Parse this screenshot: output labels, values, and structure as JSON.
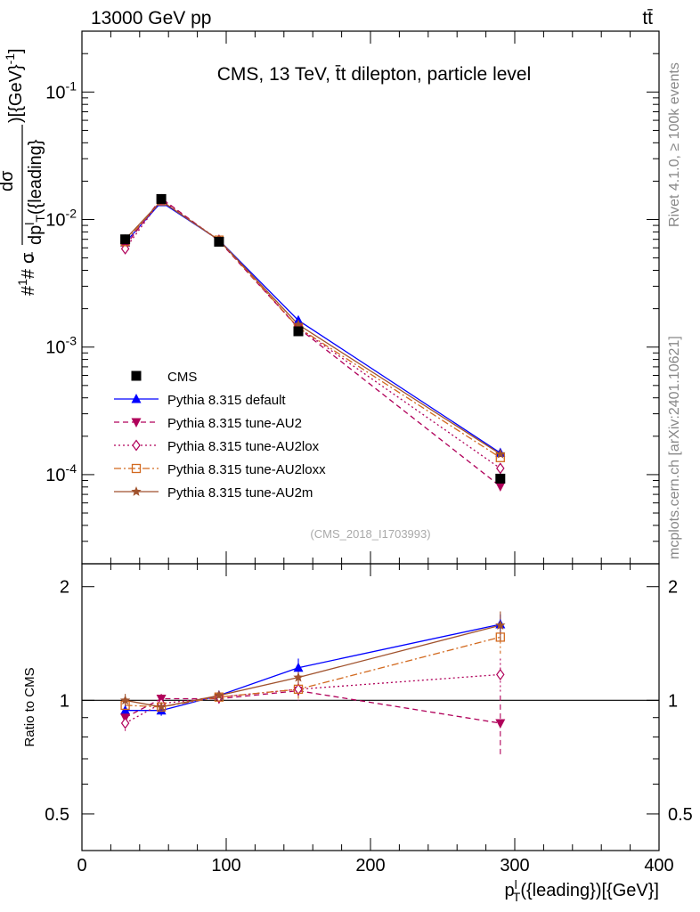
{
  "header": {
    "left": "13000 GeV pp",
    "right": "tt̄"
  },
  "side_labels": {
    "rivet": "Rivet 4.1.0, ≥ 100k events",
    "mcplots": "mcplots.cern.ch [arXiv:2401.10621]"
  },
  "chart_data": {
    "type": "line",
    "title": "CMS, 13 TeV, t̄t dilepton, particle level",
    "watermark": "(CMS_2018_I1703993)",
    "xlabel": "p_T^l({leading})[{GeV}]",
    "ylabel_main": "#1/σ# dσ/dp_T^l({leading})[{GeV}^-1]",
    "ylabel_ratio": "Ratio to CMS",
    "x_range": [
      0,
      400
    ],
    "y_range_main": [
      2e-05,
      0.3
    ],
    "y_scale_main": "log",
    "y_range_ratio": [
      0.4,
      2.3
    ],
    "y_scale_ratio": "log",
    "x_ticks": [
      "0",
      "100",
      "200",
      "300",
      "400"
    ],
    "y_ticks_main": [
      "10^-1",
      "10^-2",
      "10^-3",
      "10^-4"
    ],
    "y_ticks_ratio": [
      "2",
      "1",
      "0.5"
    ],
    "x": [
      30,
      55,
      95,
      150,
      290
    ],
    "reference": {
      "name": "CMS",
      "values": [
        0.007,
        0.0145,
        0.0067,
        0.00133,
        9.3e-05
      ],
      "errors": [
        0.0004,
        0.0007,
        0.00025,
        6e-05,
        1.1e-05
      ]
    },
    "series": [
      {
        "name": "Pythia 8.315 default",
        "color": "#0000ff",
        "marker": "triangle-up",
        "dash": "",
        "values": [
          0.0066,
          0.0137,
          0.0069,
          0.00162,
          0.000148
        ],
        "ratio": [
          0.94,
          0.94,
          1.03,
          1.22,
          1.59
        ],
        "ratio_err": [
          0.04,
          0.03,
          0.03,
          0.07,
          0.1
        ]
      },
      {
        "name": "Pythia 8.315 tune-AU2",
        "color": "#b0005a",
        "marker": "triangle-down",
        "dash": "6,4",
        "values": [
          0.0062,
          0.0147,
          0.0068,
          0.00141,
          8.1e-05
        ],
        "ratio": [
          0.9,
          1.01,
          1.01,
          1.06,
          0.87
        ],
        "ratio_err": [
          0.04,
          0.03,
          0.03,
          0.06,
          0.16
        ]
      },
      {
        "name": "Pythia 8.315 tune-AU2lox",
        "color": "#b0005a",
        "marker": "diamond-open",
        "dash": "2,3",
        "values": [
          0.0059,
          0.0143,
          0.0069,
          0.00142,
          0.000112
        ],
        "ratio": [
          0.87,
          0.98,
          1.02,
          1.07,
          1.17
        ],
        "ratio_err": [
          0.04,
          0.03,
          0.03,
          0.06,
          0.12
        ]
      },
      {
        "name": "Pythia 8.315 tune-AU2loxx",
        "color": "#d2691e",
        "marker": "square-open",
        "dash": "8,3,2,3",
        "values": [
          0.0067,
          0.014,
          0.0069,
          0.00142,
          0.000136
        ],
        "ratio": [
          0.97,
          0.96,
          1.02,
          1.07,
          1.47
        ],
        "ratio_err": [
          0.04,
          0.03,
          0.03,
          0.06,
          0.14
        ]
      },
      {
        "name": "Pythia 8.315 tune-AU2m",
        "color": "#a0522d",
        "marker": "star",
        "dash": "",
        "values": [
          0.007,
          0.014,
          0.0069,
          0.0015,
          0.000145
        ],
        "ratio": [
          1.0,
          0.96,
          1.03,
          1.15,
          1.58
        ],
        "ratio_err": [
          0.04,
          0.03,
          0.03,
          0.06,
          0.14
        ]
      }
    ]
  }
}
